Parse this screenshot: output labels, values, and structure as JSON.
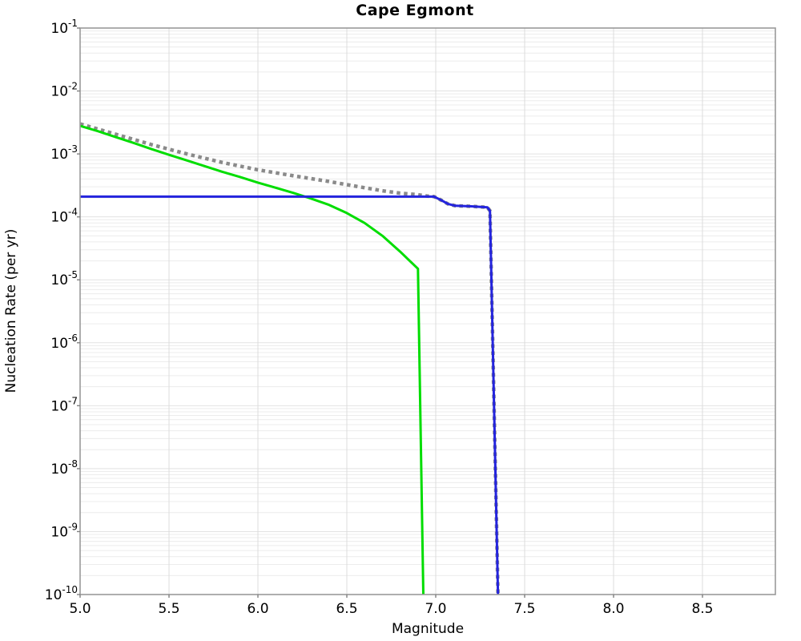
{
  "chart_data": {
    "type": "line",
    "title": "Cape Egmont",
    "xlabel": "Magnitude",
    "ylabel": "Nucleation Rate (per yr)",
    "xlim": [
      5.0,
      8.91
    ],
    "y_scale": "log",
    "ylim": [
      1e-10,
      0.1
    ],
    "grid": "on",
    "legend": "none",
    "x_ticks": [
      {
        "v": 5.0,
        "label": "5.0"
      },
      {
        "v": 5.5,
        "label": "5.5"
      },
      {
        "v": 6.0,
        "label": "6.0"
      },
      {
        "v": 6.5,
        "label": "6.5"
      },
      {
        "v": 7.0,
        "label": "7.0"
      },
      {
        "v": 7.5,
        "label": "7.5"
      },
      {
        "v": 8.0,
        "label": "8.0"
      },
      {
        "v": 8.5,
        "label": "8.5"
      }
    ],
    "y_ticks": [
      {
        "base": "10",
        "exp": "-1"
      },
      {
        "base": "10",
        "exp": "-2"
      },
      {
        "base": "10",
        "exp": "-3"
      },
      {
        "base": "10",
        "exp": "-4"
      },
      {
        "base": "10",
        "exp": "-5"
      },
      {
        "base": "10",
        "exp": "-6"
      },
      {
        "base": "10",
        "exp": "-7"
      },
      {
        "base": "10",
        "exp": "-8"
      },
      {
        "base": "10",
        "exp": "-9"
      },
      {
        "base": "10",
        "exp": "-10"
      }
    ],
    "series": [
      {
        "name": "total-rate-dotted",
        "color": "#8a8a8a",
        "style": "dotted",
        "width": 4.5,
        "points": [
          [
            5.0,
            0.003
          ],
          [
            5.2,
            0.00206
          ],
          [
            5.4,
            0.00141
          ],
          [
            5.6,
            0.001
          ],
          [
            5.8,
            0.00073
          ],
          [
            6.0,
            0.00056
          ],
          [
            6.2,
            0.00045
          ],
          [
            6.4,
            0.000365
          ],
          [
            6.5,
            0.000325
          ],
          [
            6.6,
            0.00029
          ],
          [
            6.7,
            0.00026
          ],
          [
            6.8,
            0.000238
          ],
          [
            6.9,
            0.000225
          ],
          [
            6.95,
            0.000215
          ],
          [
            6.99,
            0.00021
          ],
          [
            7.03,
            0.000185
          ],
          [
            7.07,
            0.00016
          ],
          [
            7.11,
            0.00015
          ],
          [
            7.2,
            0.000147
          ],
          [
            7.29,
            0.000142
          ],
          [
            7.305,
            0.000125
          ],
          [
            7.35,
            1e-10
          ]
        ]
      },
      {
        "name": "tapered-green-curve",
        "color": "#00dd00",
        "style": "solid",
        "width": 3,
        "points": [
          [
            5.0,
            0.0028
          ],
          [
            5.1,
            0.0023
          ],
          [
            5.2,
            0.00185
          ],
          [
            5.3,
            0.0015
          ],
          [
            5.4,
            0.0012
          ],
          [
            5.5,
            0.00097
          ],
          [
            5.6,
            0.00079
          ],
          [
            5.7,
            0.00064
          ],
          [
            5.8,
            0.00052
          ],
          [
            5.9,
            0.00043
          ],
          [
            6.0,
            0.00035
          ],
          [
            6.1,
            0.00029
          ],
          [
            6.2,
            0.00024
          ],
          [
            6.3,
            0.000195
          ],
          [
            6.4,
            0.000155
          ],
          [
            6.5,
            0.000115
          ],
          [
            6.6,
            8e-05
          ],
          [
            6.7,
            5e-05
          ],
          [
            6.8,
            2.8e-05
          ],
          [
            6.9,
            1.5e-05
          ],
          [
            6.93,
            1e-10
          ]
        ]
      },
      {
        "name": "characteristic-blue-curve",
        "color": "#2424dd",
        "style": "solid",
        "width": 3,
        "points": [
          [
            5.0,
            0.00021
          ],
          [
            6.99,
            0.00021
          ],
          [
            7.03,
            0.000185
          ],
          [
            7.07,
            0.00016
          ],
          [
            7.11,
            0.00015
          ],
          [
            7.2,
            0.000147
          ],
          [
            7.29,
            0.000142
          ],
          [
            7.305,
            0.000125
          ],
          [
            7.35,
            1e-10
          ]
        ]
      }
    ],
    "colors": {
      "frame": "#999999",
      "grid_minor": "#ececec",
      "grid_major": "#e2e2e2",
      "grid_vertical": "#dcdcdc",
      "tick": "#808080",
      "text": "#000000",
      "background": "#ffffff"
    }
  }
}
